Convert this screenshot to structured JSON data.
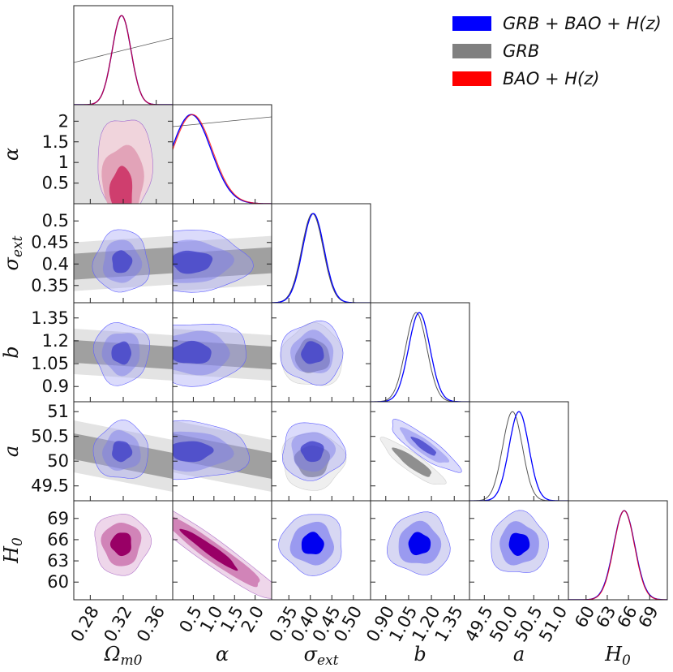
{
  "chart_data": {
    "type": "corner",
    "parameters": [
      {
        "key": "Om",
        "label_base": "Ω",
        "label_sub": "m0",
        "ticks": [
          "0.28",
          "0.32",
          "0.36"
        ],
        "tick_values": [
          0.28,
          0.32,
          0.36
        ],
        "range": [
          0.26,
          0.38
        ],
        "mean": 0.318,
        "sigma": 0.0115,
        "show_y": false
      },
      {
        "key": "alpha",
        "label_base": "α",
        "label_sub": "",
        "ticks": [
          "0.5",
          "1.0",
          "1.5",
          "2.0"
        ],
        "tick_values": [
          0.5,
          1.0,
          1.5,
          2.0
        ],
        "y_ticks": [
          "0.5",
          "1",
          "1.5",
          "2"
        ],
        "y_tick_values": [
          0.5,
          1.0,
          1.5,
          2.0
        ],
        "range": [
          0.0,
          2.4
        ],
        "mean": 0.45,
        "sigma": 0.48,
        "show_y": true
      },
      {
        "key": "sigma_ext",
        "label_base": "σ",
        "label_sub": "ext",
        "ticks": [
          "0.35",
          "0.40",
          "0.45",
          "0.50"
        ],
        "tick_values": [
          0.35,
          0.4,
          0.45,
          0.5
        ],
        "y_ticks": [
          "0.35",
          "0.4",
          "0.45",
          "0.5"
        ],
        "y_tick_values": [
          0.35,
          0.4,
          0.45,
          0.5
        ],
        "range": [
          0.31,
          0.54
        ],
        "mean": 0.405,
        "sigma": 0.025,
        "show_y": true
      },
      {
        "key": "b",
        "label_base": "b",
        "label_sub": "",
        "ticks": [
          "0.90",
          "1.05",
          "1.20",
          "1.35"
        ],
        "tick_values": [
          0.9,
          1.05,
          1.2,
          1.35
        ],
        "y_ticks": [
          "0.9",
          "1.05",
          "1.2",
          "1.35"
        ],
        "y_tick_values": [
          0.9,
          1.05,
          1.2,
          1.35
        ],
        "range": [
          0.8,
          1.45
        ],
        "mean": 1.12,
        "sigma": 0.07,
        "show_y": true
      },
      {
        "key": "a",
        "label_base": "a",
        "label_sub": "",
        "ticks": [
          "49.5",
          "50.0",
          "50.5",
          "51.0"
        ],
        "tick_values": [
          49.5,
          50.0,
          50.5,
          51.0
        ],
        "y_ticks": [
          "49.5",
          "50",
          "50.5",
          "51"
        ],
        "y_tick_values": [
          49.5,
          50.0,
          50.5,
          51.0
        ],
        "range": [
          49.2,
          51.2
        ],
        "mean": 50.2,
        "sigma": 0.2,
        "show_y": true
      },
      {
        "key": "H0",
        "label_base": "H",
        "label_sub": "0",
        "ticks": [
          "60",
          "63",
          "66",
          "69"
        ],
        "tick_values": [
          60,
          63,
          66,
          69
        ],
        "y_ticks": [
          "60",
          "63",
          "66",
          "69"
        ],
        "y_tick_values": [
          60,
          63,
          66,
          69
        ],
        "range": [
          57.5,
          71.5
        ],
        "mean": 65.4,
        "sigma": 1.5,
        "show_y": true
      }
    ],
    "series": [
      {
        "name": "GRB + BAO + H(z)",
        "color": "#0000ff"
      },
      {
        "name": "GRB",
        "color": "#808080"
      },
      {
        "name": "BAO + H(z)",
        "color": "#ff0000"
      }
    ],
    "legend": "top-right",
    "grid": false
  }
}
